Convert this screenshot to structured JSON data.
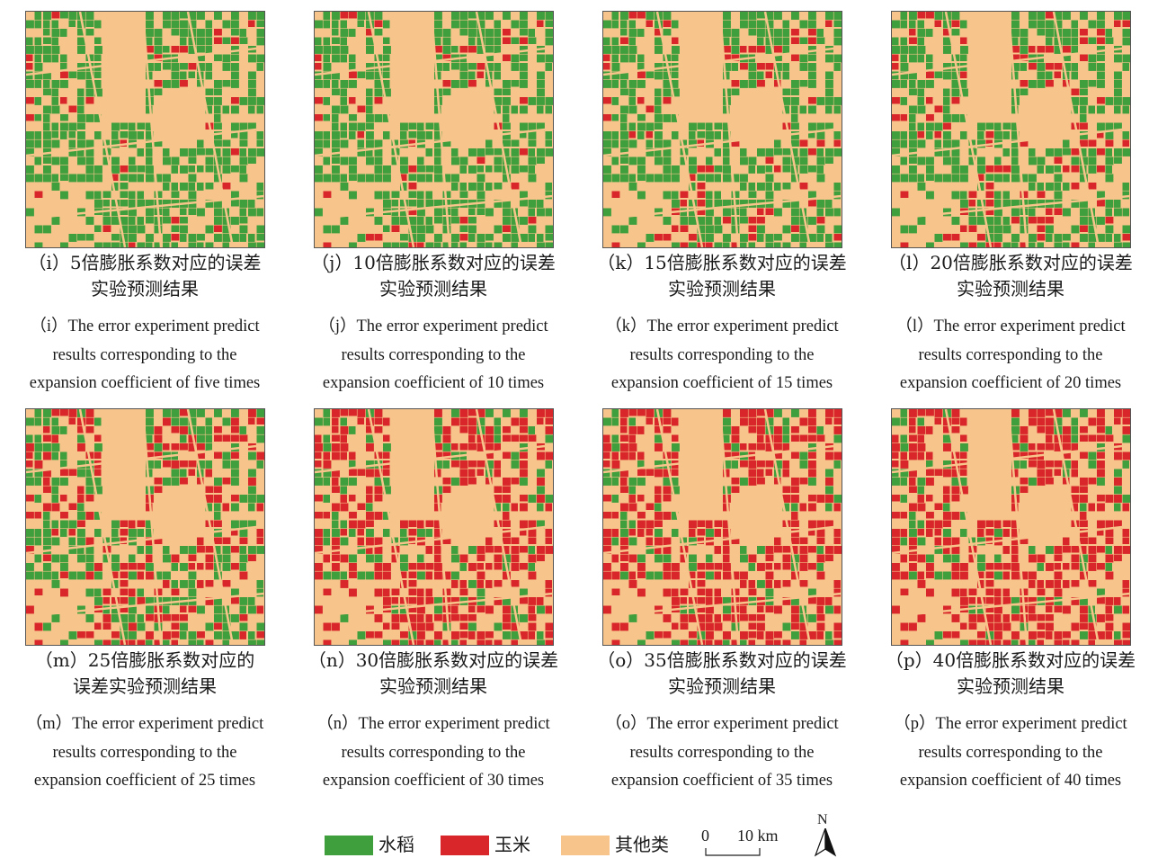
{
  "panels": [
    {
      "id": "i",
      "zh": [
        "（i）5倍膨胀系数对应的误差",
        "实验预测结果"
      ],
      "en": [
        "（i）The error experiment predict",
        "results corresponding to the",
        "expansion coefficient of five times"
      ],
      "corn_ratio": 0.06
    },
    {
      "id": "j",
      "zh": [
        "（j）10倍膨胀系数对应的误差",
        "实验预测结果"
      ],
      "en": [
        "（j）The error experiment predict",
        "results corresponding to the",
        "expansion coefficient of 10 times"
      ],
      "corn_ratio": 0.1
    },
    {
      "id": "k",
      "zh": [
        "（k）15倍膨胀系数对应的误差",
        "实验预测结果"
      ],
      "en": [
        "（k）The error experiment predict",
        "results corresponding to the",
        "expansion coefficient of 15 times"
      ],
      "corn_ratio": 0.2
    },
    {
      "id": "l",
      "zh": [
        "（l）20倍膨胀系数对应的误差",
        "实验预测结果"
      ],
      "en": [
        "（l）The error experiment predict",
        "results corresponding to the",
        "expansion coefficient of 20 times"
      ],
      "corn_ratio": 0.25
    },
    {
      "id": "m",
      "zh": [
        "（m）25倍膨胀系数对应的",
        "误差实验预测结果"
      ],
      "en": [
        "（m）The error experiment predict",
        "results corresponding to the",
        "expansion coefficient of 25 times"
      ],
      "corn_ratio": 0.45
    },
    {
      "id": "n",
      "zh": [
        "（n）30倍膨胀系数对应的误差",
        "实验预测结果"
      ],
      "en": [
        "（n）The error experiment predict",
        "results corresponding to the",
        "expansion coefficient of 30 times"
      ],
      "corn_ratio": 0.72
    },
    {
      "id": "o",
      "zh": [
        "（o）35倍膨胀系数对应的误差",
        "实验预测结果"
      ],
      "en": [
        "（o）The error experiment predict",
        "results corresponding to the",
        "expansion coefficient of 35 times"
      ],
      "corn_ratio": 0.75
    },
    {
      "id": "p",
      "zh": [
        "（p）40倍膨胀系数对应的误差",
        "实验预测结果"
      ],
      "en": [
        "（p）The error experiment predict",
        "results corresponding to the",
        "expansion coefficient of 40 times"
      ],
      "corn_ratio": 0.78
    }
  ],
  "legend": {
    "items": [
      {
        "label": "水稻",
        "color": "#3f9f3c"
      },
      {
        "label": "玉米",
        "color": "#d8262a"
      },
      {
        "label": "其他类",
        "color": "#f7c58c"
      }
    ],
    "scale": {
      "zero": "0",
      "value": "10 km"
    },
    "north": "N"
  }
}
